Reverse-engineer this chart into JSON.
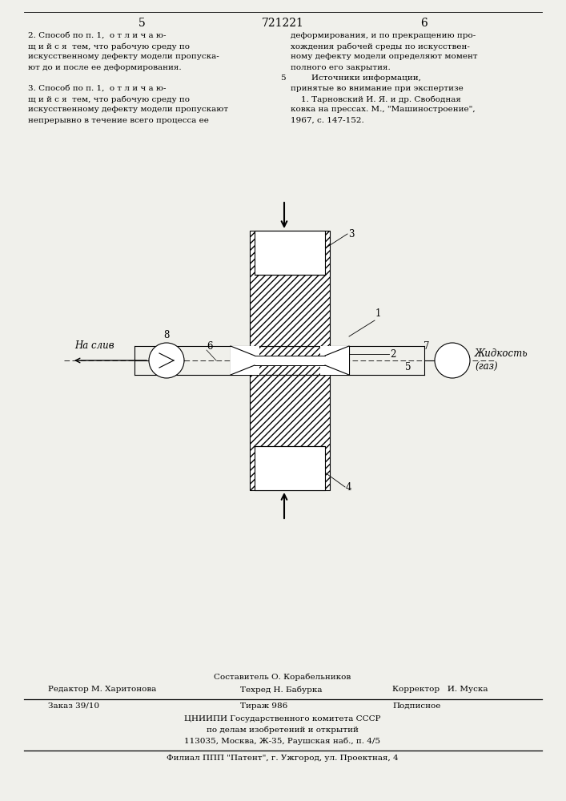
{
  "bg_color": "#f0f0eb",
  "page_number_left": "5",
  "page_number_center": "721221",
  "page_number_right": "6",
  "col1_text": [
    "2. Способ по п. 1,  о т л и ч а ю-",
    "щ и й с я  тем, что рабочую среду по",
    "искусственному дефекту модели пропуска-",
    "ют до и после ее деформирования.",
    "",
    "3. Способ по п. 1,  о т л и ч а ю-",
    "щ и й с я  тем, что рабочую среду по",
    "искусственному дефекту модели пропускают",
    "непрерывно в течение всего процесса ее"
  ],
  "col2_text": [
    "деформирования, и по прекращению про-",
    "хождения рабочей среды по искусствен-",
    "ному дефекту модели определяют момент",
    "полного его закрытия.",
    "        Источники информации,",
    "принятые во внимание при экспертизе",
    "    1. Тарновский И. Я. и др. Свободная",
    "ковка на прессах. М., \"Машиностроение\",",
    "1967, с. 147-152."
  ],
  "footnote_line1": "Составитель О. Корабельников",
  "footnote_line2_left": "Редактор М. Харитонова",
  "footnote_line2_mid": "Техред Н. Бабурка",
  "footnote_line2_right": "Корректор   И. Муска",
  "footnote_line3_left": "Заказ 39/10",
  "footnote_line3_mid": "Тираж 986",
  "footnote_line3_right": "Подписное",
  "footnote_line4": "ЦНИИПИ Государственного комитета СССР",
  "footnote_line5": "по делам изобретений и открытий",
  "footnote_line6": "113035, Москва, Ж-35, Раушская наб., п. 4/5",
  "footnote_line7": "Филиал ППП \"Патент\", г. Ужгород, ул. Проектная, 4",
  "label_na_sliv": "На слив",
  "label_zhidkost": "Жидкость\n(газ)"
}
